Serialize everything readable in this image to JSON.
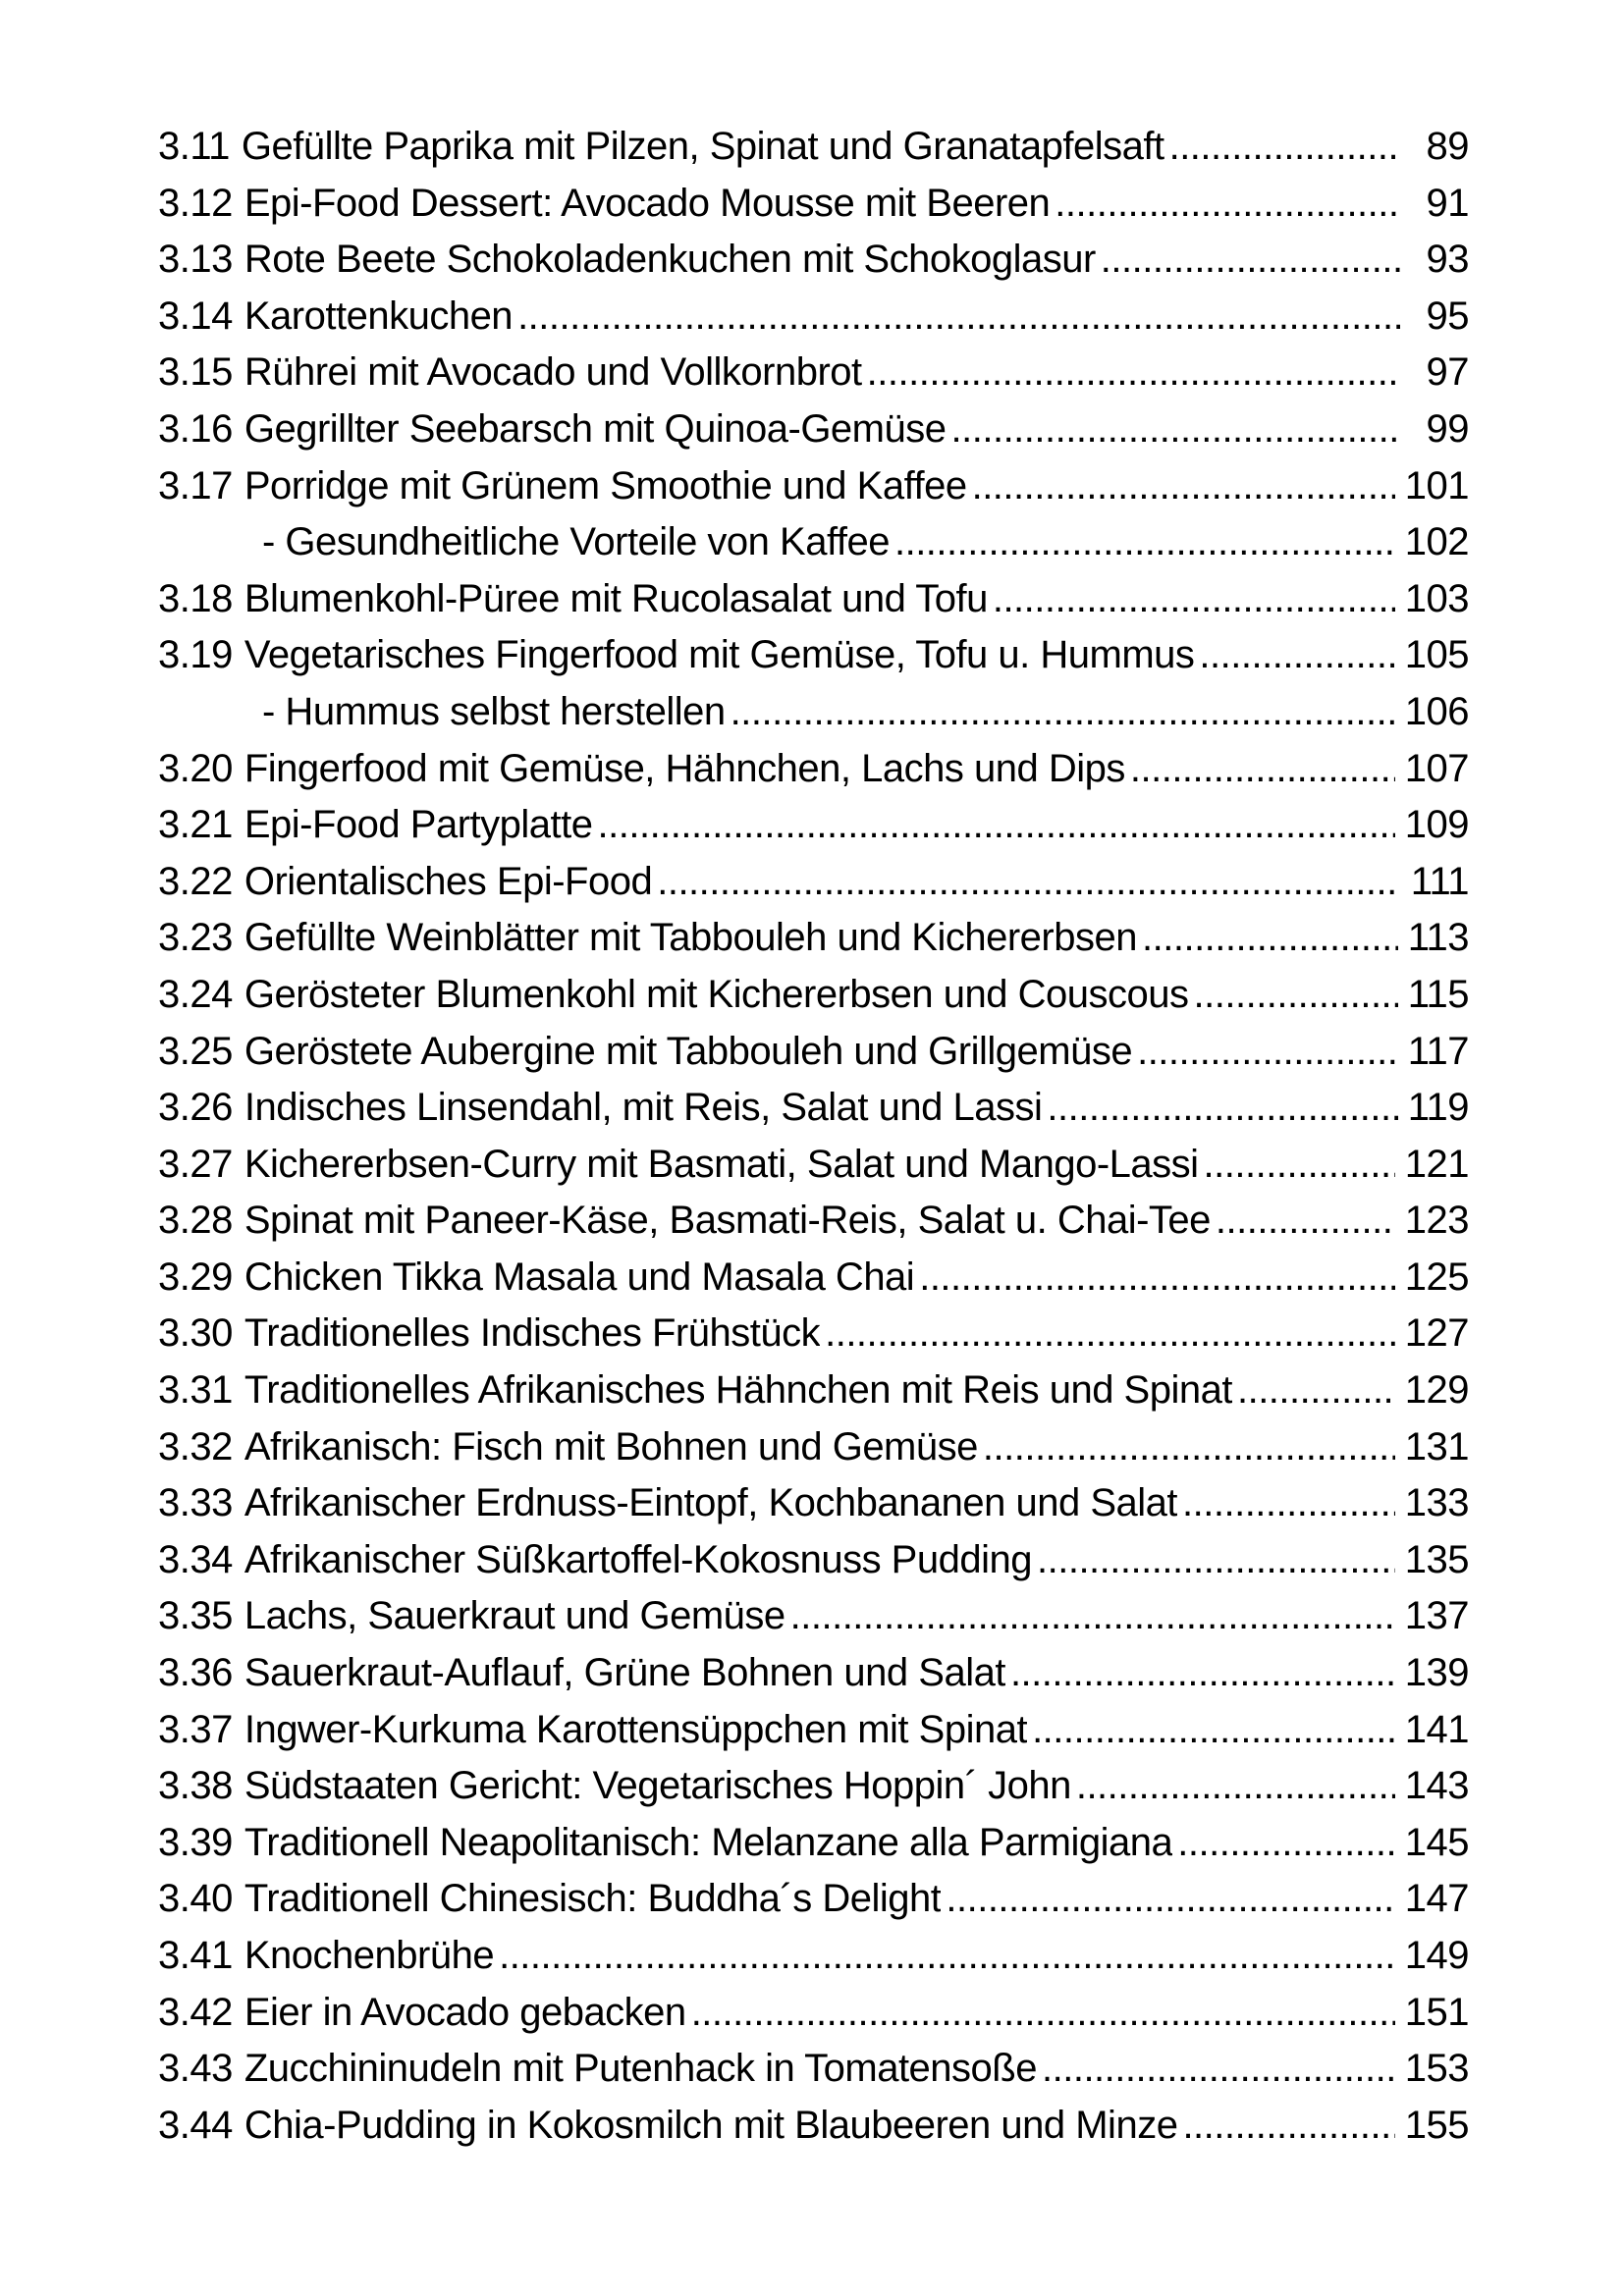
{
  "colors": {
    "text": "#000000",
    "page_background": "#ffffff"
  },
  "toc": {
    "entries": [
      {
        "num": "3.11",
        "title": "Gefüllte Paprika mit Pilzen, Spinat und Granatapfelsaft",
        "page": "89",
        "indent": false
      },
      {
        "num": "3.12",
        "title": "Epi-Food Dessert: Avocado Mousse mit Beeren",
        "page": "91",
        "indent": false
      },
      {
        "num": "3.13",
        "title": "Rote Beete Schokoladenkuchen mit Schokoglasur",
        "page": "93",
        "indent": false
      },
      {
        "num": "3.14",
        "title": "Karottenkuchen",
        "page": "95",
        "indent": false
      },
      {
        "num": "3.15",
        "title": "Rührei mit Avocado und Vollkornbrot",
        "page": "97",
        "indent": false
      },
      {
        "num": "3.16",
        "title": "Gegrillter Seebarsch mit Quinoa-Gemüse",
        "page": "99",
        "indent": false
      },
      {
        "num": "3.17",
        "title": "Porridge mit Grünem Smoothie und Kaffee",
        "page": "101",
        "indent": false
      },
      {
        "num": "",
        "title": "- Gesundheitliche Vorteile von Kaffee",
        "page": "102",
        "indent": true
      },
      {
        "num": "3.18",
        "title": "Blumenkohl-Püree mit Rucolasalat und Tofu",
        "page": "103",
        "indent": false
      },
      {
        "num": "3.19",
        "title": "Vegetarisches Fingerfood mit Gemüse, Tofu u. Hummus",
        "page": "105",
        "indent": false
      },
      {
        "num": "",
        "title": "- Hummus selbst herstellen",
        "page": "106",
        "indent": true
      },
      {
        "num": "3.20",
        "title": "Fingerfood mit Gemüse, Hähnchen, Lachs und Dips",
        "page": "107",
        "indent": false
      },
      {
        "num": "3.21",
        "title": "Epi-Food Partyplatte",
        "page": "109",
        "indent": false
      },
      {
        "num": "3.22",
        "title": "Orientalisches Epi-Food",
        "page": "111",
        "indent": false
      },
      {
        "num": "3.23",
        "title": "Gefüllte Weinblätter mit Tabbouleh und Kichererbsen",
        "page": "113",
        "indent": false
      },
      {
        "num": "3.24",
        "title": "Gerösteter Blumenkohl mit Kichererbsen und Couscous",
        "page": "115",
        "indent": false
      },
      {
        "num": "3.25",
        "title": "Geröstete Aubergine mit Tabbouleh und Grillgemüse",
        "page": "117",
        "indent": false
      },
      {
        "num": "3.26",
        "title": "Indisches Linsendahl, mit Reis, Salat und Lassi",
        "page": "119",
        "indent": false
      },
      {
        "num": "3.27",
        "title": "Kichererbsen-Curry mit Basmati, Salat und Mango-Lassi",
        "page": "121",
        "indent": false
      },
      {
        "num": "3.28",
        "title": "Spinat mit Paneer-Käse, Basmati-Reis, Salat u. Chai-Tee",
        "page": "123",
        "indent": false
      },
      {
        "num": "3.29",
        "title": "Chicken Tikka Masala und Masala Chai",
        "page": "125",
        "indent": false
      },
      {
        "num": "3.30",
        "title": "Traditionelles Indisches Frühstück",
        "page": "127",
        "indent": false
      },
      {
        "num": "3.31",
        "title": "Traditionelles Afrikanisches Hähnchen mit Reis und Spinat",
        "page": "129",
        "indent": false
      },
      {
        "num": "3.32",
        "title": "Afrikanisch: Fisch mit Bohnen und Gemüse",
        "page": "131",
        "indent": false
      },
      {
        "num": "3.33",
        "title": "Afrikanischer Erdnuss-Eintopf, Kochbananen und Salat",
        "page": "133",
        "indent": false
      },
      {
        "num": "3.34",
        "title": "Afrikanischer Süßkartoffel-Kokosnuss Pudding",
        "page": "135",
        "indent": false
      },
      {
        "num": "3.35",
        "title": "Lachs, Sauerkraut und Gemüse",
        "page": "137",
        "indent": false
      },
      {
        "num": "3.36",
        "title": "Sauerkraut-Auflauf, Grüne Bohnen und Salat",
        "page": "139",
        "indent": false
      },
      {
        "num": "3.37",
        "title": "Ingwer-Kurkuma Karottensüppchen mit Spinat",
        "page": "141",
        "indent": false
      },
      {
        "num": "3.38",
        "title": "Südstaaten Gericht: Vegetarisches Hoppin´ John",
        "page": "143",
        "indent": false
      },
      {
        "num": "3.39",
        "title": "Traditionell Neapolitanisch: Melanzane alla Parmigiana",
        "page": "145",
        "indent": false
      },
      {
        "num": "3.40",
        "title": "Traditionell Chinesisch: Buddha´s Delight",
        "page": "147",
        "indent": false
      },
      {
        "num": "3.41",
        "title": "Knochenbrühe",
        "page": "149",
        "indent": false
      },
      {
        "num": "3.42",
        "title": "Eier in Avocado gebacken",
        "page": "151",
        "indent": false
      },
      {
        "num": "3.43",
        "title": "Zucchininudeln mit Putenhack in Tomatensoße",
        "page": "153",
        "indent": false
      },
      {
        "num": "3.44",
        "title": "Chia-Pudding in Kokosmilch mit Blaubeeren und Minze",
        "page": "155",
        "indent": false
      }
    ]
  }
}
